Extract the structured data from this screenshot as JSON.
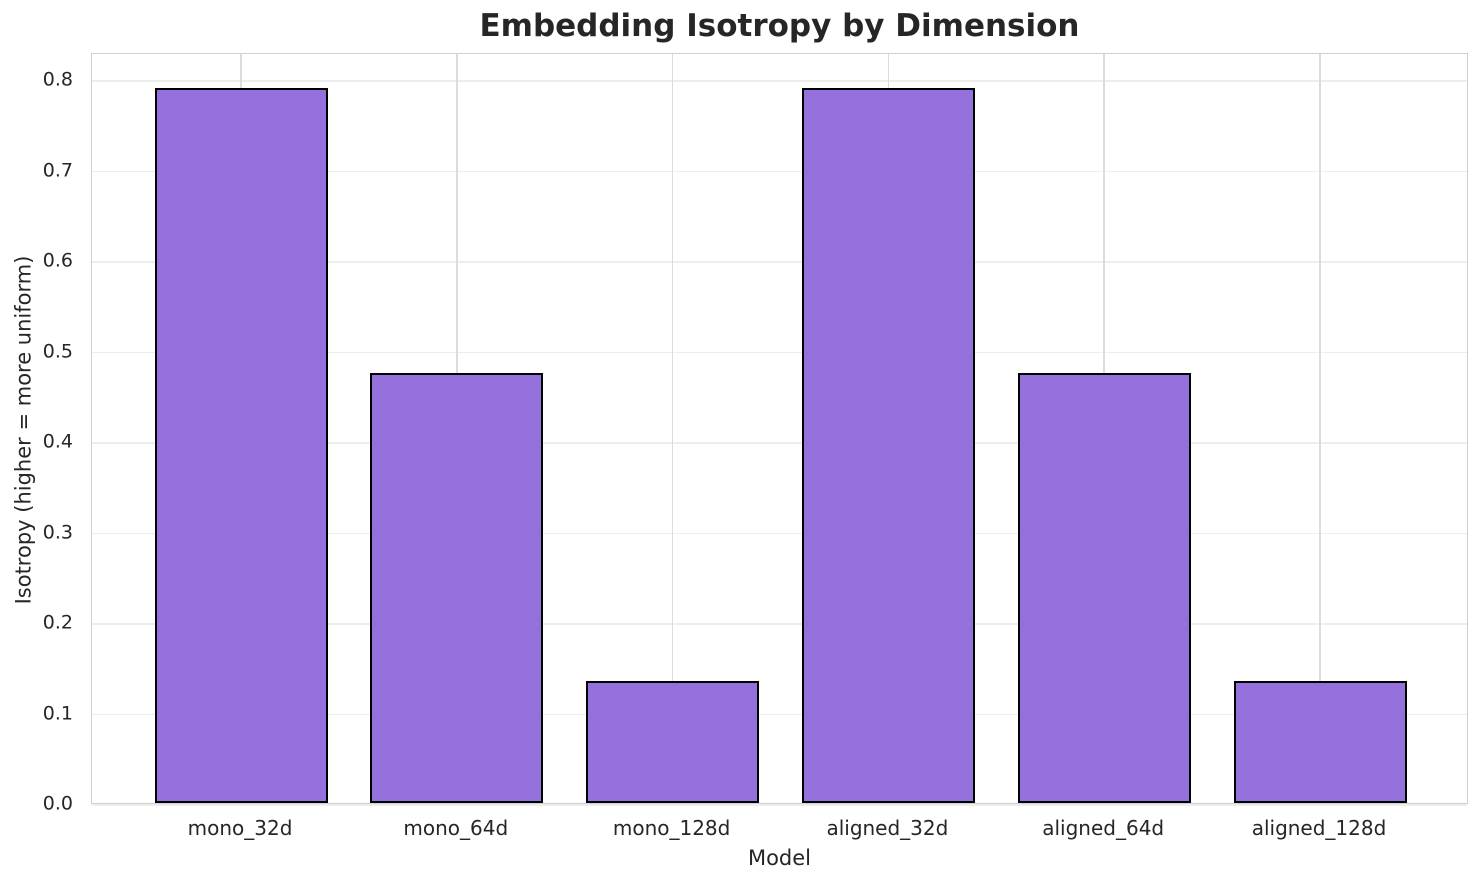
{
  "figure": {
    "background": "#ffffff"
  },
  "chart_data": {
    "type": "bar",
    "title": "Embedding Isotropy by Dimension",
    "xlabel": "Model",
    "ylabel": "Isotropy (higher = more uniform)",
    "categories": [
      "mono_32d",
      "mono_64d",
      "mono_128d",
      "aligned_32d",
      "aligned_64d",
      "aligned_128d"
    ],
    "values": [
      0.79,
      0.475,
      0.135,
      0.79,
      0.475,
      0.135
    ],
    "ylim": [
      0,
      0.83
    ],
    "yticks": [
      0.0,
      0.1,
      0.2,
      0.3,
      0.4,
      0.5,
      0.6,
      0.7,
      0.8
    ],
    "ytick_decimals": 1,
    "grid": true,
    "colors": {
      "bar_fill": "#9370DB",
      "bar_edge": "#000000",
      "grid_horizontal": "#ededed",
      "grid_vertical": "#dcdcdc",
      "axes_edge": "#d0d0d0",
      "text": "#262626"
    }
  }
}
